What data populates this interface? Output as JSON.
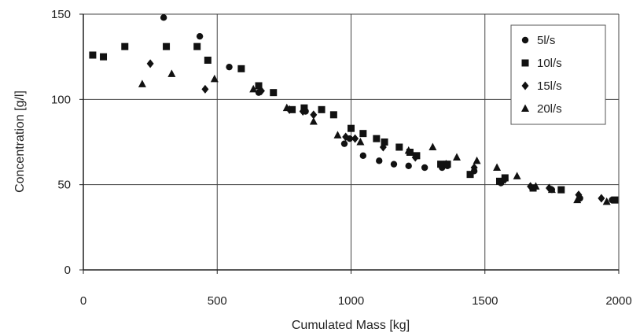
{
  "chart_data": {
    "type": "scatter",
    "title": "",
    "xlabel": "Cumulated Mass [kg]",
    "ylabel": "Concentration [g/l]",
    "xlim": [
      0,
      2000
    ],
    "ylim": [
      0,
      150
    ],
    "xticks": [
      "0",
      "500",
      "1000",
      "1500",
      "2000"
    ],
    "yticks": [
      "0",
      "50",
      "100",
      "150"
    ],
    "grid": true,
    "legend_position": "top-right",
    "series": [
      {
        "name": "5l/s",
        "marker": "circle",
        "color": "#111111",
        "points": [
          [
            300,
            148
          ],
          [
            435,
            137
          ],
          [
            545,
            119
          ],
          [
            655,
            104
          ],
          [
            830,
            93
          ],
          [
            975,
            74
          ],
          [
            995,
            77
          ],
          [
            1045,
            67
          ],
          [
            1105,
            64
          ],
          [
            1160,
            62
          ],
          [
            1215,
            61
          ],
          [
            1275,
            60
          ],
          [
            1340,
            60
          ],
          [
            1360,
            61
          ],
          [
            1460,
            58
          ],
          [
            1560,
            51
          ],
          [
            1750,
            47
          ],
          [
            1855,
            42
          ],
          [
            1975,
            41
          ]
        ]
      },
      {
        "name": "10l/s",
        "marker": "square",
        "color": "#111111",
        "points": [
          [
            35,
            126
          ],
          [
            75,
            125
          ],
          [
            155,
            131
          ],
          [
            310,
            131
          ],
          [
            425,
            131
          ],
          [
            465,
            123
          ],
          [
            590,
            118
          ],
          [
            655,
            108
          ],
          [
            710,
            104
          ],
          [
            780,
            94
          ],
          [
            825,
            95
          ],
          [
            890,
            94
          ],
          [
            935,
            91
          ],
          [
            1000,
            83
          ],
          [
            1045,
            80
          ],
          [
            1095,
            77
          ],
          [
            1125,
            75
          ],
          [
            1180,
            72
          ],
          [
            1220,
            69
          ],
          [
            1245,
            67
          ],
          [
            1335,
            62
          ],
          [
            1360,
            62
          ],
          [
            1445,
            56
          ],
          [
            1555,
            52
          ],
          [
            1575,
            54
          ],
          [
            1680,
            48
          ],
          [
            1785,
            47
          ],
          [
            1985,
            41
          ]
        ]
      },
      {
        "name": "15l/s",
        "marker": "diamond",
        "color": "#111111",
        "points": [
          [
            250,
            121
          ],
          [
            455,
            106
          ],
          [
            665,
            105
          ],
          [
            770,
            94
          ],
          [
            820,
            93
          ],
          [
            860,
            91
          ],
          [
            980,
            78
          ],
          [
            1015,
            77
          ],
          [
            1120,
            72
          ],
          [
            1240,
            66
          ],
          [
            1355,
            62
          ],
          [
            1460,
            60
          ],
          [
            1575,
            53
          ],
          [
            1670,
            49
          ],
          [
            1740,
            48
          ],
          [
            1850,
            44
          ],
          [
            1935,
            42
          ]
        ]
      },
      {
        "name": "20l/s",
        "marker": "triangle",
        "color": "#111111",
        "points": [
          [
            220,
            109
          ],
          [
            330,
            115
          ],
          [
            490,
            112
          ],
          [
            635,
            106
          ],
          [
            760,
            95
          ],
          [
            860,
            87
          ],
          [
            950,
            79
          ],
          [
            1035,
            75
          ],
          [
            1215,
            70
          ],
          [
            1305,
            72
          ],
          [
            1395,
            66
          ],
          [
            1470,
            64
          ],
          [
            1545,
            60
          ],
          [
            1620,
            55
          ],
          [
            1690,
            49
          ],
          [
            1750,
            47
          ],
          [
            1845,
            41
          ],
          [
            1955,
            40
          ]
        ]
      }
    ]
  }
}
